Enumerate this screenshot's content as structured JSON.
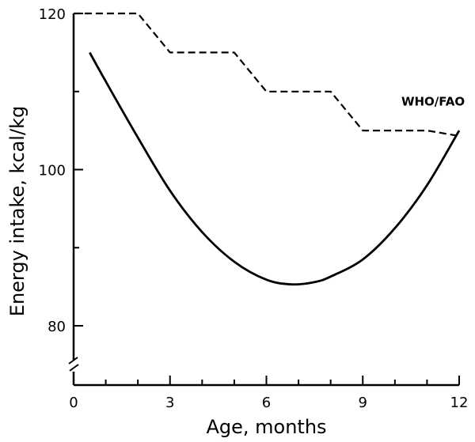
{
  "chart_data": {
    "type": "line",
    "title": "",
    "xlabel": "Age, months",
    "ylabel": "Energy intake, kcal/kg",
    "xlim": [
      0,
      12
    ],
    "ylim": [
      75,
      120
    ],
    "axis_break": "y",
    "x_ticks": [
      0,
      3,
      6,
      9,
      12
    ],
    "x_minor_ticks": [
      1,
      2,
      4,
      5,
      7,
      8,
      10,
      11
    ],
    "y_ticks": [
      80,
      100,
      120
    ],
    "y_minor_ticks": [
      90,
      110
    ],
    "grid": false,
    "legend": "none",
    "series": [
      {
        "style": "solid",
        "x": [
          0.5,
          1,
          2,
          3,
          4,
          5,
          6,
          6.8,
          7.5,
          8,
          9,
          10,
          11,
          12
        ],
        "y": [
          115,
          111.3,
          104.1,
          97.3,
          92,
          88.2,
          85.9,
          85.3,
          85.6,
          86.3,
          88.5,
          92.5,
          98,
          105
        ]
      },
      {
        "name": "WHO/FAO",
        "style": "dashed",
        "x": [
          0,
          2,
          3,
          5,
          6,
          8,
          9,
          11,
          12
        ],
        "y": [
          120,
          120,
          115,
          115,
          110,
          110,
          105,
          105,
          104.3
        ]
      }
    ]
  }
}
